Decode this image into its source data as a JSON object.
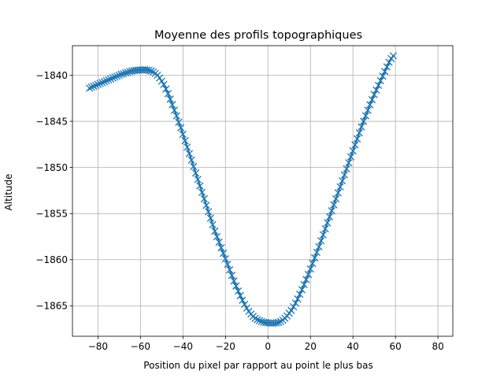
{
  "chart_data": {
    "type": "line",
    "title": "Moyenne des profils topographiques",
    "xlabel": "Position du pixel par rapport au point le plus bas",
    "ylabel": "Altitude",
    "xlim": [
      -92,
      87
    ],
    "ylim": [
      -1868.3,
      -1836.8
    ],
    "xticks": [
      -80,
      -60,
      -40,
      -20,
      0,
      20,
      40,
      60,
      80
    ],
    "yticks": [
      -1865,
      -1860,
      -1855,
      -1850,
      -1845,
      -1840
    ],
    "xtick_labels": [
      "−80",
      "−60",
      "−40",
      "−20",
      "0",
      "20",
      "40",
      "60",
      "80"
    ],
    "ytick_labels": [
      "−1865",
      "−1860",
      "−1855",
      "−1850",
      "−1845",
      "−1840"
    ],
    "grid": true,
    "legend": null,
    "marker": "x",
    "color": "#1f77b4",
    "series": [
      {
        "x_start": -84,
        "x_step": 1,
        "values": [
          -1841.4,
          -1841.3,
          -1841.2,
          -1841.1,
          -1841.0,
          -1840.9,
          -1840.8,
          -1840.7,
          -1840.6,
          -1840.5,
          -1840.4,
          -1840.3,
          -1840.2,
          -1840.1,
          -1840.0,
          -1839.9,
          -1839.85,
          -1839.75,
          -1839.7,
          -1839.6,
          -1839.55,
          -1839.5,
          -1839.48,
          -1839.45,
          -1839.43,
          -1839.42,
          -1839.42,
          -1839.44,
          -1839.48,
          -1839.55,
          -1839.65,
          -1839.8,
          -1840.0,
          -1840.3,
          -1840.65,
          -1841.0,
          -1841.5,
          -1842.0,
          -1842.6,
          -1843.2,
          -1843.8,
          -1844.4,
          -1845.1,
          -1845.7,
          -1846.4,
          -1847.1,
          -1847.8,
          -1848.5,
          -1849.2,
          -1849.9,
          -1850.6,
          -1851.3,
          -1852.0,
          -1852.7,
          -1853.4,
          -1854.1,
          -1854.8,
          -1855.5,
          -1856.2,
          -1856.9,
          -1857.5,
          -1858.1,
          -1858.7,
          -1859.3,
          -1859.9,
          -1860.5,
          -1861.1,
          -1861.7,
          -1862.3,
          -1862.85,
          -1863.4,
          -1863.9,
          -1864.4,
          -1864.85,
          -1865.25,
          -1865.6,
          -1865.9,
          -1866.15,
          -1866.35,
          -1866.5,
          -1866.6,
          -1866.7,
          -1866.78,
          -1866.82,
          -1866.85,
          -1866.87,
          -1866.88,
          -1866.87,
          -1866.85,
          -1866.8,
          -1866.7,
          -1866.55,
          -1866.35,
          -1866.1,
          -1865.8,
          -1865.5,
          -1865.1,
          -1864.7,
          -1864.25,
          -1863.75,
          -1863.25,
          -1862.7,
          -1862.15,
          -1861.6,
          -1861.0,
          -1860.4,
          -1859.8,
          -1859.2,
          -1858.6,
          -1857.95,
          -1857.3,
          -1856.65,
          -1856.0,
          -1855.35,
          -1854.7,
          -1854.05,
          -1853.4,
          -1852.75,
          -1852.1,
          -1851.45,
          -1850.8,
          -1850.15,
          -1849.5,
          -1848.85,
          -1848.2,
          -1847.55,
          -1846.9,
          -1846.25,
          -1845.6,
          -1845.0,
          -1844.4,
          -1843.8,
          -1843.2,
          -1842.65,
          -1842.1,
          -1841.6,
          -1841.1,
          -1840.6,
          -1840.1,
          -1839.6,
          -1839.1,
          -1838.6,
          -1838.2,
          -1837.9
        ]
      }
    ]
  }
}
